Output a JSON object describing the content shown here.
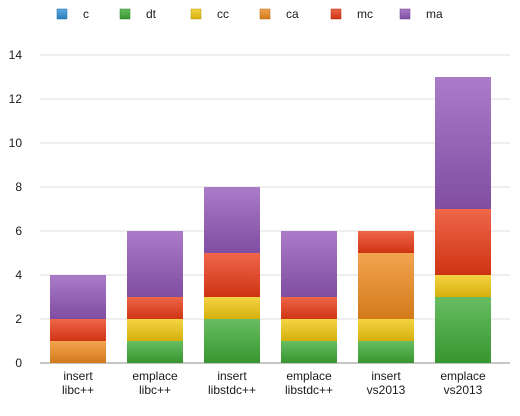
{
  "chart_data": {
    "type": "bar",
    "stacked": true,
    "categories": [
      [
        "insert",
        "libc++"
      ],
      [
        "emplace",
        "libc++"
      ],
      [
        "insert",
        "libstdc++"
      ],
      [
        "emplace",
        "libstdc++"
      ],
      [
        "insert",
        "vs2013"
      ],
      [
        "emplace",
        "vs2013"
      ]
    ],
    "series": [
      {
        "name": "c",
        "color": "#2f8fd8",
        "values": [
          0,
          0,
          0,
          0,
          0,
          0
        ]
      },
      {
        "name": "dt",
        "color": "#3daa35",
        "values": [
          0,
          1,
          2,
          1,
          1,
          3
        ]
      },
      {
        "name": "cc",
        "color": "#f2c80f",
        "values": [
          0,
          1,
          1,
          1,
          1,
          1
        ]
      },
      {
        "name": "ca",
        "color": "#ef8a1e",
        "values": [
          1,
          0,
          0,
          0,
          3,
          0
        ]
      },
      {
        "name": "mc",
        "color": "#ea3b16",
        "values": [
          1,
          1,
          2,
          1,
          1,
          3
        ]
      },
      {
        "name": "ma",
        "color": "#9257b8",
        "values": [
          2,
          3,
          3,
          3,
          0,
          6
        ]
      }
    ],
    "yticks": [
      0,
      2,
      4,
      6,
      8,
      10,
      12,
      14
    ],
    "ylim": [
      0,
      14
    ],
    "grid": true,
    "legend_position": "top",
    "title": "",
    "xlabel": "",
    "ylabel": ""
  }
}
